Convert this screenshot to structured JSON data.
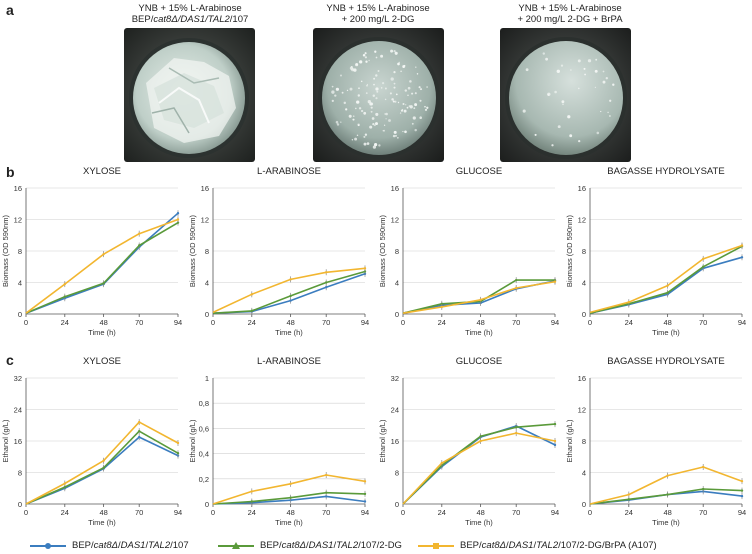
{
  "panel_labels": {
    "a": "a",
    "b": "b",
    "c": "c"
  },
  "plates": [
    {
      "caption_line1": "YNB + 15% L-Arabinose",
      "caption_line2_parts": [
        "BEP/",
        "cat8Δ/DAS1/TAL2",
        "/107"
      ]
    },
    {
      "caption_line1": "YNB + 15% L-Arabinose",
      "caption_line2": "+ 200 mg/L 2-DG"
    },
    {
      "caption_line1": "YNB + 15% L-Arabinose",
      "caption_line2": "+ 200 mg/L 2-DG + BrPA"
    }
  ],
  "colors": {
    "strain1": "#3b7dbf",
    "strain2": "#5a9a3a",
    "strain3": "#f2b630",
    "axis": "#555555",
    "grid": "#d0d0d0"
  },
  "legend": [
    {
      "marker": "circle",
      "parts": [
        "BEP/",
        "cat8Δ",
        "/",
        "DAS1",
        "/",
        "TAL2",
        "/107"
      ]
    },
    {
      "marker": "triangle",
      "parts": [
        "BEP/",
        "cat8Δ",
        "/",
        "DAS1",
        "/",
        "TAL2",
        "/107/2-DG"
      ]
    },
    {
      "marker": "square",
      "parts": [
        "BEP/",
        "cat8Δ",
        "/",
        "DAS1",
        "/",
        "TAL2",
        "/107/2-DG/BrPA (A107)"
      ]
    }
  ],
  "chart_data": [
    {
      "type": "line",
      "row": "b",
      "title": "XYLOSE",
      "xlabel": "Time (h)",
      "ylabel": "Biomass (OD 590nm)",
      "x": [
        0,
        24,
        48,
        70,
        94
      ],
      "ylim": [
        0,
        16
      ],
      "yticks": [
        "0",
        "4",
        "8",
        "12",
        "16"
      ],
      "series": [
        {
          "name": "BEP/cat8Δ/DAS1/TAL2/107",
          "values": [
            0.1,
            2.0,
            3.8,
            8.5,
            12.8
          ]
        },
        {
          "name": "BEP/cat8Δ/DAS1/TAL2/107/2-DG",
          "values": [
            0.1,
            2.2,
            3.9,
            8.7,
            11.6
          ]
        },
        {
          "name": "BEP/cat8Δ/DAS1/TAL2/107/2-DG/BrPA (A107)",
          "values": [
            0.1,
            3.8,
            7.6,
            10.2,
            12.0
          ]
        }
      ]
    },
    {
      "type": "line",
      "row": "b",
      "title": "L-ARABINOSE",
      "xlabel": "Time (h)",
      "ylabel": "Biomass (OD 590nm)",
      "x": [
        0,
        24,
        48,
        70,
        94
      ],
      "ylim": [
        0,
        16
      ],
      "yticks": [
        "0",
        "4",
        "8",
        "12",
        "16"
      ],
      "series": [
        {
          "name": "BEP/cat8Δ/DAS1/TAL2/107",
          "values": [
            0.1,
            0.3,
            1.7,
            3.4,
            5.1
          ]
        },
        {
          "name": "BEP/cat8Δ/DAS1/TAL2/107/2-DG",
          "values": [
            0.1,
            0.4,
            2.3,
            4.0,
            5.4
          ]
        },
        {
          "name": "BEP/cat8Δ/DAS1/TAL2/107/2-DG/BrPA (A107)",
          "values": [
            0.2,
            2.5,
            4.4,
            5.3,
            5.8
          ]
        }
      ]
    },
    {
      "type": "line",
      "row": "b",
      "title": "GLUCOSE",
      "xlabel": "Time (h)",
      "ylabel": "Biomass (OD 590nm)",
      "x": [
        0,
        24,
        48,
        70,
        94
      ],
      "ylim": [
        0,
        16
      ],
      "yticks": [
        "0",
        "4",
        "8",
        "12",
        "16"
      ],
      "series": [
        {
          "name": "BEP/cat8Δ/DAS1/TAL2/107",
          "values": [
            0.1,
            1.1,
            1.4,
            3.2,
            4.2
          ]
        },
        {
          "name": "BEP/cat8Δ/DAS1/TAL2/107/2-DG",
          "values": [
            0.1,
            1.3,
            1.6,
            4.3,
            4.3
          ]
        },
        {
          "name": "BEP/cat8Δ/DAS1/TAL2/107/2-DG/BrPA (A107)",
          "values": [
            0.1,
            0.9,
            1.8,
            3.3,
            4.1
          ]
        }
      ]
    },
    {
      "type": "line",
      "row": "b",
      "title": "BAGASSE HYDROLYSATE",
      "xlabel": "Time (h)",
      "ylabel": "Biomass (OD 590nm)",
      "x": [
        0,
        24,
        48,
        70,
        94
      ],
      "ylim": [
        0,
        16
      ],
      "yticks": [
        "0",
        "4",
        "8",
        "12",
        "16"
      ],
      "series": [
        {
          "name": "BEP/cat8Δ/DAS1/TAL2/107",
          "values": [
            0.1,
            1.2,
            2.5,
            5.8,
            7.2
          ]
        },
        {
          "name": "BEP/cat8Δ/DAS1/TAL2/107/2-DG",
          "values": [
            0.1,
            1.3,
            2.7,
            6.0,
            8.6
          ]
        },
        {
          "name": "BEP/cat8Δ/DAS1/TAL2/107/2-DG/BrPA (A107)",
          "values": [
            0.2,
            1.5,
            3.6,
            7.0,
            8.7
          ]
        }
      ]
    },
    {
      "type": "line",
      "row": "c",
      "title": "XYLOSE",
      "xlabel": "Time (h)",
      "ylabel": "Ethanol (g/L)",
      "x": [
        0,
        24,
        48,
        70,
        94
      ],
      "ylim": [
        0,
        32
      ],
      "yticks": [
        "0",
        "8",
        "16",
        "24",
        "32"
      ],
      "series": [
        {
          "name": "BEP/cat8Δ/DAS1/TAL2/107",
          "values": [
            0,
            4.0,
            9.0,
            17.0,
            12.3
          ]
        },
        {
          "name": "BEP/cat8Δ/DAS1/TAL2/107/2-DG",
          "values": [
            0,
            4.3,
            9.2,
            18.5,
            12.9
          ]
        },
        {
          "name": "BEP/cat8Δ/DAS1/TAL2/107/2-DG/BrPA (A107)",
          "values": [
            0,
            5.2,
            11.0,
            20.8,
            15.5
          ]
        }
      ]
    },
    {
      "type": "line",
      "row": "c",
      "title": "L-ARABINOSE",
      "xlabel": "Time (h)",
      "ylabel": "Ethanol (g/L)",
      "x": [
        0,
        24,
        48,
        70,
        94
      ],
      "ylim": [
        0,
        1
      ],
      "yticks": [
        "0",
        "0,2",
        "0,4",
        "0,6",
        "0,8",
        "1"
      ],
      "series": [
        {
          "name": "BEP/cat8Δ/DAS1/TAL2/107",
          "values": [
            0,
            0.01,
            0.03,
            0.06,
            0.02
          ]
        },
        {
          "name": "BEP/cat8Δ/DAS1/TAL2/107/2-DG",
          "values": [
            0,
            0.02,
            0.05,
            0.09,
            0.08
          ]
        },
        {
          "name": "BEP/cat8Δ/DAS1/TAL2/107/2-DG/BrPA (A107)",
          "values": [
            0,
            0.1,
            0.16,
            0.23,
            0.18
          ]
        }
      ]
    },
    {
      "type": "line",
      "row": "c",
      "title": "GLUCOSE",
      "xlabel": "Time (h)",
      "ylabel": "Ethanol (g/L)",
      "x": [
        0,
        24,
        48,
        70,
        94
      ],
      "ylim": [
        0,
        32
      ],
      "yticks": [
        "0",
        "8",
        "16",
        "24",
        "32"
      ],
      "series": [
        {
          "name": "BEP/cat8Δ/DAS1/TAL2/107",
          "values": [
            0,
            9.5,
            17.0,
            19.8,
            15.0
          ]
        },
        {
          "name": "BEP/cat8Δ/DAS1/TAL2/107/2-DG",
          "values": [
            0,
            9.8,
            17.2,
            19.5,
            20.3
          ]
        },
        {
          "name": "BEP/cat8Δ/DAS1/TAL2/107/2-DG/BrPA (A107)",
          "values": [
            0,
            10.4,
            16.0,
            18.0,
            16.0
          ]
        }
      ]
    },
    {
      "type": "line",
      "row": "c",
      "title": "BAGASSE HYDROLYSATE",
      "xlabel": "Time (h)",
      "ylabel": "Ethanol (g/L)",
      "x": [
        0,
        24,
        48,
        70,
        94
      ],
      "ylim": [
        0,
        16
      ],
      "yticks": [
        "0",
        "4",
        "8",
        "12",
        "16"
      ],
      "series": [
        {
          "name": "BEP/cat8Δ/DAS1/TAL2/107",
          "values": [
            0,
            0.5,
            1.2,
            1.6,
            1.0
          ]
        },
        {
          "name": "BEP/cat8Δ/DAS1/TAL2/107/2-DG",
          "values": [
            0,
            0.6,
            1.2,
            1.9,
            1.7
          ]
        },
        {
          "name": "BEP/cat8Δ/DAS1/TAL2/107/2-DG/BrPA (A107)",
          "values": [
            0,
            1.2,
            3.6,
            4.7,
            2.9
          ]
        }
      ]
    }
  ]
}
